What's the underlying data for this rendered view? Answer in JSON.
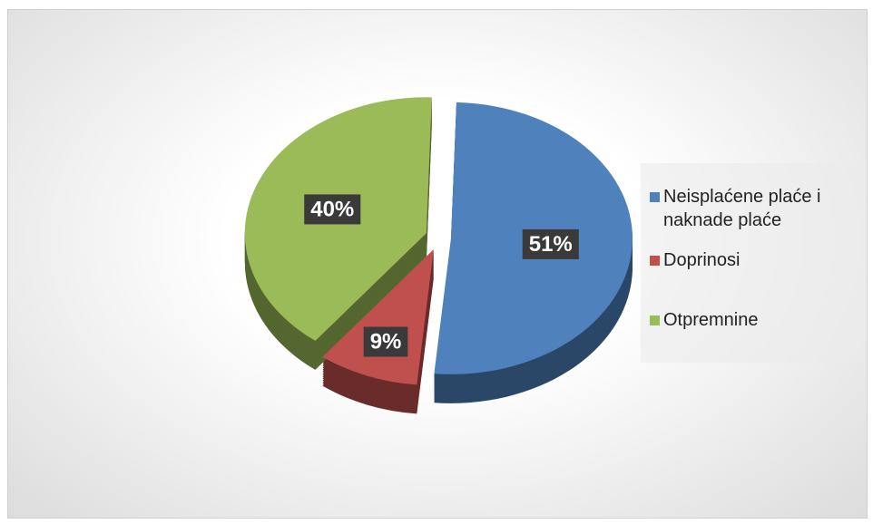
{
  "chart_data": {
    "type": "pie",
    "categories": [
      "Neisplaćene plaće i naknade plaće",
      "Doprinosi",
      "Otpremnine"
    ],
    "values": [
      51,
      9,
      40
    ],
    "value_labels": [
      "51%",
      "9%",
      "40%"
    ],
    "colors": [
      "#4f81bd",
      "#c0504d",
      "#9bbb59"
    ],
    "legend": "right"
  }
}
